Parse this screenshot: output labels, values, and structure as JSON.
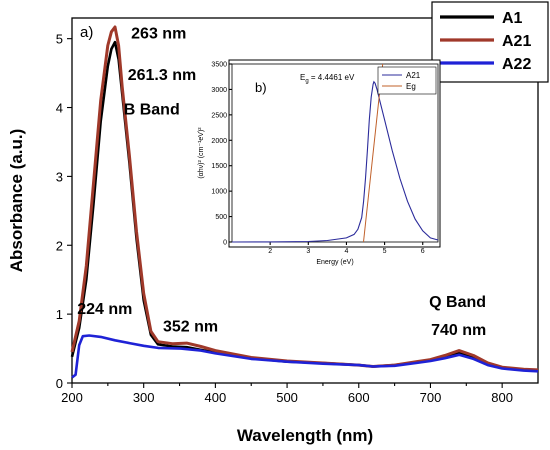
{
  "chart_data": [
    {
      "type": "line",
      "panel_label": "a)",
      "xlabel": "Wavelength (nm)",
      "ylabel": "Absorbance (a.u.)",
      "xlim": [
        200,
        850
      ],
      "ylim": [
        0,
        5.3
      ],
      "xticks": [
        "200",
        "300",
        "400",
        "500",
        "600",
        "700",
        "800"
      ],
      "yticks": [
        "0",
        "1",
        "2",
        "3",
        "4",
        "5"
      ],
      "legend_position": "top-right",
      "annotations": [
        {
          "text": "263 nm",
          "x": 263,
          "y": 5.0
        },
        {
          "text": "261.3 nm",
          "x": 261,
          "y": 4.4
        },
        {
          "text": "B Band",
          "x": 261,
          "y": 3.9
        },
        {
          "text": "224 nm",
          "x": 224,
          "y": 1.0
        },
        {
          "text": "352 nm",
          "x": 352,
          "y": 0.75
        },
        {
          "text": "Q Band",
          "x": 740,
          "y": 1.1
        },
        {
          "text": "740 nm",
          "x": 740,
          "y": 0.7
        }
      ],
      "series": [
        {
          "name": "A1",
          "color": "#000000",
          "x": [
            200,
            210,
            220,
            230,
            240,
            250,
            255,
            260,
            265,
            270,
            280,
            290,
            300,
            310,
            320,
            340,
            360,
            380,
            400,
            450,
            500,
            550,
            600,
            620,
            650,
            680,
            700,
            720,
            740,
            760,
            780,
            800,
            830,
            850
          ],
          "y": [
            0.38,
            0.8,
            1.5,
            2.6,
            3.8,
            4.6,
            4.85,
            4.95,
            4.7,
            4.2,
            3.2,
            2.1,
            1.2,
            0.7,
            0.56,
            0.53,
            0.52,
            0.48,
            0.44,
            0.36,
            0.31,
            0.29,
            0.26,
            0.24,
            0.26,
            0.3,
            0.33,
            0.38,
            0.44,
            0.38,
            0.28,
            0.22,
            0.19,
            0.18
          ]
        },
        {
          "name": "A21",
          "color": "#a0392a",
          "x": [
            200,
            210,
            220,
            230,
            240,
            250,
            255,
            260,
            265,
            270,
            280,
            290,
            300,
            310,
            320,
            340,
            360,
            380,
            400,
            450,
            500,
            550,
            600,
            620,
            650,
            680,
            700,
            720,
            740,
            760,
            780,
            800,
            830,
            850
          ],
          "y": [
            0.45,
            0.9,
            1.7,
            2.9,
            4.1,
            4.9,
            5.1,
            5.17,
            4.9,
            4.3,
            3.3,
            2.2,
            1.3,
            0.75,
            0.6,
            0.57,
            0.58,
            0.53,
            0.47,
            0.37,
            0.32,
            0.29,
            0.26,
            0.24,
            0.26,
            0.31,
            0.34,
            0.4,
            0.47,
            0.4,
            0.29,
            0.23,
            0.2,
            0.19
          ]
        },
        {
          "name": "A22",
          "color": "#1f22d6",
          "x": [
            200,
            205,
            210,
            215,
            224,
            240,
            260,
            280,
            300,
            320,
            352,
            380,
            400,
            450,
            500,
            550,
            600,
            620,
            650,
            680,
            700,
            720,
            740,
            760,
            780,
            800,
            830,
            850
          ],
          "y": [
            0.08,
            0.12,
            0.55,
            0.68,
            0.69,
            0.67,
            0.62,
            0.58,
            0.54,
            0.51,
            0.5,
            0.47,
            0.43,
            0.35,
            0.31,
            0.28,
            0.26,
            0.24,
            0.25,
            0.29,
            0.32,
            0.36,
            0.41,
            0.35,
            0.26,
            0.21,
            0.18,
            0.17
          ]
        }
      ]
    },
    {
      "type": "line",
      "panel_label": "b)",
      "xlabel": "Energy (eV)",
      "ylabel": "(αhν)² (cm⁻¹eV)²",
      "xlim": [
        1.0,
        6.4
      ],
      "ylim": [
        0,
        3500
      ],
      "xticks": [
        "2",
        "3",
        "4",
        "5",
        "6"
      ],
      "yticks": [
        "0",
        "500",
        "1000",
        "1500",
        "2000",
        "2500",
        "3000",
        "3500"
      ],
      "legend_position": "top-right",
      "annotation": "Eg = 4.4461 eV",
      "annotation_text": "E",
      "annotation_sub": "g",
      "annotation_rest": " = 4.4461 eV",
      "series": [
        {
          "name": "A21",
          "color": "#2b2b9b",
          "x": [
            1.0,
            2.0,
            3.0,
            3.5,
            4.0,
            4.2,
            4.3,
            4.4,
            4.45,
            4.5,
            4.55,
            4.6,
            4.65,
            4.7,
            4.72,
            4.75,
            4.8,
            4.9,
            5.0,
            5.2,
            5.4,
            5.6,
            5.8,
            6.0,
            6.2,
            6.4
          ],
          "y": [
            0,
            2,
            10,
            30,
            80,
            150,
            250,
            480,
            800,
            1250,
            1800,
            2400,
            2850,
            3100,
            3150,
            3120,
            3000,
            2700,
            2400,
            1800,
            1250,
            800,
            450,
            220,
            80,
            40
          ]
        },
        {
          "name": "Eg",
          "color": "#c0602a",
          "x": [
            4.4461,
            4.95
          ],
          "y": [
            0,
            3500
          ]
        }
      ]
    }
  ],
  "legend_main": [
    "A1",
    "A21",
    "A22"
  ],
  "legend_inset": [
    "A21",
    "Eg"
  ]
}
